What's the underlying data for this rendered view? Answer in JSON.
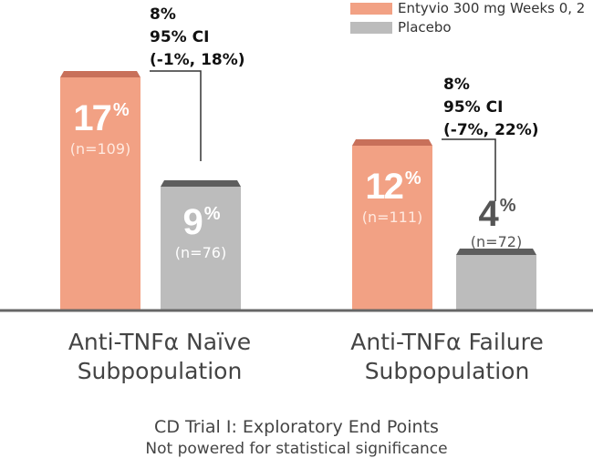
{
  "chart_data": {
    "type": "bar",
    "title": "CD Trial I: Exploratory End Points",
    "subtitle": "Not powered for statistical significance",
    "categories": [
      "Anti-TNFα Naïve Subpopulation",
      "Anti-TNFα Failure Subpopulation"
    ],
    "category_lines": [
      [
        "Anti-TNFα Naïve",
        "Subpopulation"
      ],
      [
        "Anti-TNFα Failure",
        "Subpopulation"
      ]
    ],
    "series": [
      {
        "name": "Entyvio 300 mg Weeks 0, 2",
        "color": "#f2a184",
        "cap_color": "#c8705a",
        "values": [
          17,
          12
        ],
        "n_labels": [
          "(n=109)",
          "(n=111)"
        ]
      },
      {
        "name": "Placebo",
        "color": "#bcbcbc",
        "cap_color": "#5e5e5e",
        "values": [
          9,
          4
        ],
        "n_labels": [
          "(n=76)",
          "(n=72)"
        ]
      }
    ],
    "percent_sign": "%",
    "differences": [
      [
        "8%",
        "95% CI",
        "(-1%, 18%)"
      ],
      [
        "8%",
        "95% CI",
        "(-7%, 22%)"
      ]
    ],
    "ylim": [
      0,
      18
    ],
    "grid": false,
    "legend_position": "top-right",
    "colors": {
      "value_text_on_bar": "#ffffff",
      "value_text_placebo_small": "#555555",
      "n_text_on_bar": "#ffe9df",
      "n_text_placebo": "#ffffff",
      "axis": "#666666",
      "label_text": "#444444",
      "annotation_text": "#111111",
      "bracket": "#333333"
    }
  }
}
